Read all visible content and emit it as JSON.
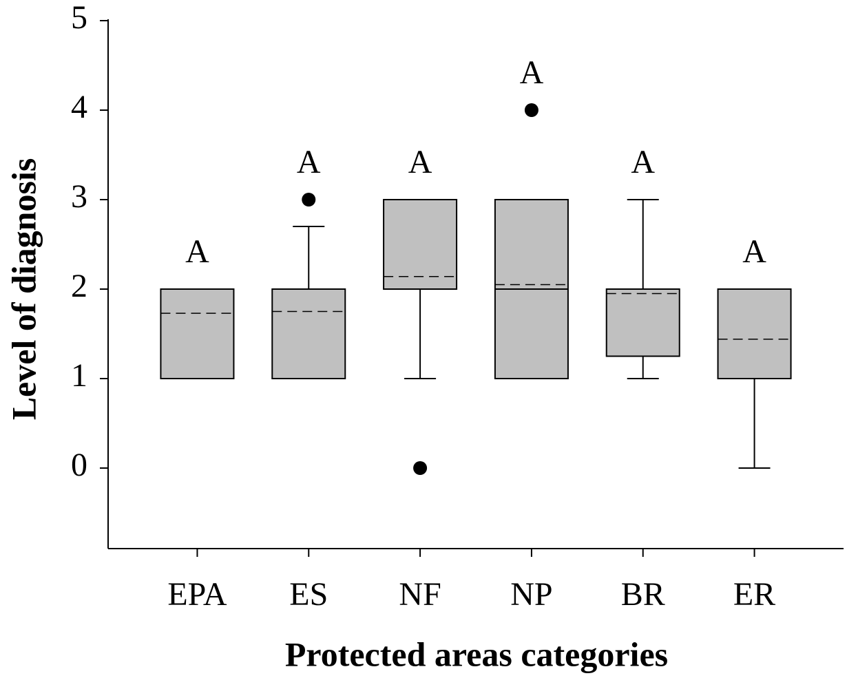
{
  "chart_data": {
    "type": "box",
    "x_label": "Protected areas categories",
    "y_label": "Level of diagnosis",
    "categories": [
      "EPA",
      "ES",
      "NF",
      "NP",
      "BR",
      "ER"
    ],
    "boxes": [
      {
        "low": 1,
        "q1": 1,
        "median": 1,
        "q3": 2,
        "high": 2,
        "mean": 1.73,
        "outliers": [],
        "label": "A"
      },
      {
        "low": 1,
        "q1": 1,
        "median": 2,
        "q3": 2,
        "high": 2.7,
        "mean": 1.75,
        "outliers": [
          3
        ],
        "label": "A"
      },
      {
        "low": 1,
        "q1": 2,
        "median": 2,
        "q3": 3,
        "high": 3,
        "mean": 2.14,
        "outliers": [
          0
        ],
        "label": "A"
      },
      {
        "low": 1,
        "q1": 1,
        "median": 2,
        "q3": 3,
        "high": 3,
        "mean": 2.05,
        "outliers": [
          4
        ],
        "label": "A"
      },
      {
        "low": 1,
        "q1": 1.25,
        "median": 2,
        "q3": 2,
        "high": 3,
        "mean": 1.95,
        "outliers": [],
        "label": "A"
      },
      {
        "low": 0,
        "q1": 1,
        "median": 1,
        "q3": 2,
        "high": 2,
        "mean": 1.44,
        "outliers": [],
        "label": "A"
      }
    ],
    "box_color": "#c0c0c0",
    "ylim": [
      -0.9,
      5
    ],
    "yticks": [
      0,
      1,
      2,
      3,
      4,
      5
    ]
  }
}
